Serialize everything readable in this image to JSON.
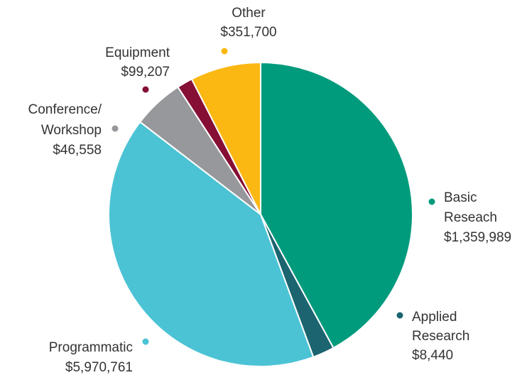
{
  "chart_data": {
    "type": "pie",
    "title": "",
    "slices": [
      {
        "label_lines": [
          "Basic",
          "Reseach"
        ],
        "value": 1359989,
        "value_label": "$1,359,989",
        "color": "#009B7D"
      },
      {
        "label_lines": [
          "Applied",
          "Research"
        ],
        "value": 8440,
        "value_label": "$8,440",
        "color": "#1B6470"
      },
      {
        "label_lines": [
          "Programmatic"
        ],
        "value": 5970761,
        "value_label": "$5,970,761",
        "color": "#4BC3D4"
      },
      {
        "label_lines": [
          "Conference/",
          "Workshop"
        ],
        "value": 46558,
        "value_label": "$46,558",
        "color": "#96989B"
      },
      {
        "label_lines": [
          "Equipment"
        ],
        "value": 99207,
        "value_label": "$99,207",
        "color": "#850F35"
      },
      {
        "label_lines": [
          "Other"
        ],
        "value": 351700,
        "value_label": "$351,700",
        "color": "#FBB813"
      }
    ],
    "legend": "labels beside slices"
  }
}
